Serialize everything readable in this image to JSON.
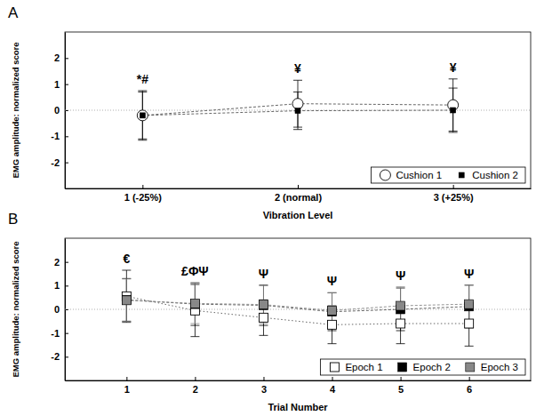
{
  "chart_data": [
    {
      "type": "line",
      "title": "A",
      "x_label": "Vibration Level",
      "y_label": "EMG amplitude: normalized score",
      "categories": [
        "1 (-25%)",
        "2 (normal)",
        "3 (+25%)"
      ],
      "series": [
        {
          "name": "Cushion 1",
          "color": "#000000",
          "marker": "circle-open",
          "line_style": "dashed",
          "values": [
            -0.2,
            0.25,
            0.2
          ],
          "errors": [
            0.95,
            0.9,
            1.0
          ]
        },
        {
          "name": "Cushion 2",
          "color": "#000000",
          "marker": "square",
          "line_style": "dashed",
          "values": [
            -0.2,
            -0.02,
            0.0
          ],
          "errors": [
            0.9,
            0.72,
            0.85
          ]
        }
      ],
      "annotations": [
        {
          "x": "1 (-25%)",
          "text": "*#"
        },
        {
          "x": "2 (normal)",
          "text": "¥"
        },
        {
          "x": "3 (+25%)",
          "text": "¥"
        }
      ],
      "reference_line": 0,
      "ylim": [
        -3,
        3
      ],
      "yticks": [
        -2,
        -1,
        0,
        1,
        2
      ],
      "legend": "lower right"
    },
    {
      "type": "line",
      "title": "B",
      "x_label": "Trial Number",
      "y_label": "EMG amplitude: normalized score",
      "categories": [
        "1",
        "2",
        "3",
        "4",
        "5",
        "6"
      ],
      "series": [
        {
          "name": "Epoch 1",
          "color": "#000000",
          "marker": "square-open",
          "line_style": "dotted",
          "values": [
            0.55,
            -0.05,
            -0.35,
            -0.65,
            -0.6,
            -0.6
          ],
          "errors": [
            1.1,
            1.1,
            0.75,
            0.8,
            0.85,
            0.95
          ]
        },
        {
          "name": "Epoch 2",
          "color": "#000000",
          "marker": "square",
          "line_style": "dashed",
          "values": [
            0.4,
            0.22,
            0.17,
            -0.1,
            0.0,
            0.12
          ],
          "errors": [
            0.9,
            0.9,
            0.85,
            0.8,
            0.9,
            0.9
          ]
        },
        {
          "name": "Epoch 3",
          "color": "#888888",
          "marker": "square",
          "line_style": "dashed",
          "values": [
            0.38,
            0.25,
            0.2,
            -0.05,
            0.15,
            0.22
          ],
          "errors": [
            0.9,
            0.85,
            0.8,
            0.75,
            0.8,
            0.8
          ]
        }
      ],
      "annotations": [
        {
          "x": "1",
          "text": "€"
        },
        {
          "x": "2",
          "text": "£ΦΨ"
        },
        {
          "x": "3",
          "text": "Ψ"
        },
        {
          "x": "4",
          "text": "Ψ"
        },
        {
          "x": "5",
          "text": "Ψ"
        },
        {
          "x": "6",
          "text": "Ψ"
        }
      ],
      "reference_line": 0,
      "ylim": [
        -3,
        3
      ],
      "yticks": [
        -2,
        -1,
        0,
        1,
        2
      ],
      "legend": "lower right"
    }
  ]
}
